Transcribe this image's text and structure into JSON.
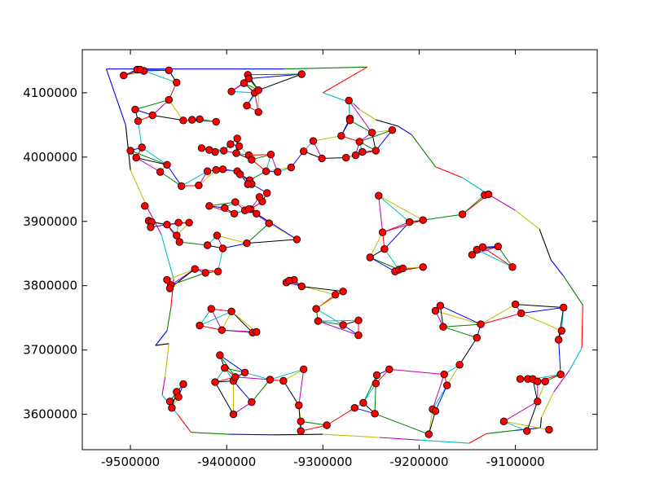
{
  "chart_data": {
    "type": "scatter",
    "title": "",
    "xlabel": "",
    "ylabel": "",
    "xlim": [
      -9550000,
      -9015000
    ],
    "ylim": [
      3545000,
      4167000
    ],
    "grid": false,
    "x_ticks": [
      -9500000,
      -9400000,
      -9300000,
      -9200000,
      -9100000
    ],
    "x_tick_labels": [
      "-9500000",
      "-9400000",
      "-9300000",
      "-9200000",
      "-9100000"
    ],
    "y_ticks": [
      3600000,
      3700000,
      3800000,
      3900000,
      4000000,
      4100000
    ],
    "y_tick_labels": [
      "3600000",
      "3700000",
      "3800000",
      "3900000",
      "4000000",
      "4100000"
    ],
    "point_style": {
      "marker": "circle",
      "fill": "#ff0000",
      "edge": "#000000"
    },
    "edge_palette": [
      "#0000ff",
      "#008000",
      "#ff0000",
      "#00bfbf",
      "#bf00bf",
      "#bfbf00",
      "#000000"
    ],
    "boundary": [
      [
        -9525000,
        4137000
      ],
      [
        -9340000,
        4137000
      ],
      [
        -9254000,
        4140000
      ],
      [
        -9300000,
        4100000
      ],
      [
        -9268000,
        4083000
      ],
      [
        -9262000,
        4074000
      ],
      [
        -9245000,
        4058000
      ],
      [
        -9222000,
        4048000
      ],
      [
        -9208000,
        4035000
      ],
      [
        -9183000,
        3985000
      ],
      [
        -9155000,
        3968000
      ],
      [
        -9128000,
        3942000
      ],
      [
        -9100000,
        3917000
      ],
      [
        -9075000,
        3888000
      ],
      [
        -9063000,
        3840000
      ],
      [
        -9050000,
        3815000
      ],
      [
        -9030000,
        3770000
      ],
      [
        -9031000,
        3703000
      ],
      [
        -9044000,
        3668000
      ],
      [
        -9060000,
        3635000
      ],
      [
        -9073000,
        3595000
      ],
      [
        -9074000,
        3579000
      ],
      [
        -9100000,
        3575000
      ],
      [
        -9130000,
        3570000
      ],
      [
        -9148000,
        3555000
      ],
      [
        -9200000,
        3560000
      ],
      [
        -9241000,
        3564000
      ],
      [
        -9300000,
        3569000
      ],
      [
        -9352000,
        3568000
      ],
      [
        -9398000,
        3569000
      ],
      [
        -9437000,
        3572000
      ],
      [
        -9451000,
        3600000
      ],
      [
        -9467000,
        3630000
      ],
      [
        -9464000,
        3658000
      ],
      [
        -9460000,
        3710000
      ],
      [
        -9474000,
        3707000
      ],
      [
        -9462000,
        3730000
      ],
      [
        -9458000,
        3765000
      ],
      [
        -9455000,
        3810000
      ],
      [
        -9468000,
        3880000
      ],
      [
        -9482000,
        3920000
      ],
      [
        -9500000,
        3980000
      ],
      [
        -9505000,
        4050000
      ],
      [
        -9525000,
        4137000
      ]
    ],
    "points": [
      [
        -9507,
        4127
      ],
      [
        -9493,
        4136
      ],
      [
        -9486,
        4134
      ],
      [
        -9490,
        4136
      ],
      [
        -9460,
        4135
      ],
      [
        -9452,
        4116
      ],
      [
        -9460,
        4089
      ],
      [
        -9495,
        4074
      ],
      [
        -9477,
        4065
      ],
      [
        -9492,
        4056
      ],
      [
        -9445,
        4057
      ],
      [
        -9436,
        4058
      ],
      [
        -9428,
        4059
      ],
      [
        -9411,
        4055
      ],
      [
        -9378,
        4128
      ],
      [
        -9377,
        4122
      ],
      [
        -9382,
        4115
      ],
      [
        -9395,
        4102
      ],
      [
        -9371,
        4100
      ],
      [
        -9367,
        4104
      ],
      [
        -9379,
        4080
      ],
      [
        -9367,
        4070
      ],
      [
        -9322,
        4129
      ],
      [
        -9273,
        4088
      ],
      [
        -9272,
        4060
      ],
      [
        -9272,
        4057
      ],
      [
        -9281,
        4033
      ],
      [
        -9262,
        4024
      ],
      [
        -9249,
        4038
      ],
      [
        -9228,
        4042
      ],
      [
        -9266,
        4003
      ],
      [
        -9276,
        3999
      ],
      [
        -9259,
        4008
      ],
      [
        -9245,
        4010
      ],
      [
        -9310,
        4025
      ],
      [
        -9301,
        3998
      ],
      [
        -9320,
        4009
      ],
      [
        -9354,
        4004
      ],
      [
        -9389,
        4029
      ],
      [
        -9396,
        4020
      ],
      [
        -9387,
        4017
      ],
      [
        -9390,
        4006
      ],
      [
        -9403,
        4010
      ],
      [
        -9412,
        4008
      ],
      [
        -9426,
        4014
      ],
      [
        -9418,
        4011
      ],
      [
        -9377,
        4003
      ],
      [
        -9374,
        3996
      ],
      [
        -9359,
        3978
      ],
      [
        -9347,
        3977
      ],
      [
        -9333,
        3984
      ],
      [
        -9500,
        4010
      ],
      [
        -9488,
        4015
      ],
      [
        -9494,
        3999
      ],
      [
        -9462,
        3988
      ],
      [
        -9469,
        3977
      ],
      [
        -9447,
        3955
      ],
      [
        -9429,
        3956
      ],
      [
        -9404,
        3981
      ],
      [
        -9411,
        3980
      ],
      [
        -9420,
        3978
      ],
      [
        -9389,
        3978
      ],
      [
        -9386,
        3973
      ],
      [
        -9376,
        3964
      ],
      [
        -9374,
        3958
      ],
      [
        -9378,
        3958
      ],
      [
        -9358,
        3944
      ],
      [
        -9363,
        3931
      ],
      [
        -9391,
        3930
      ],
      [
        -9381,
        3917
      ],
      [
        -9375,
        3919
      ],
      [
        -9366,
        3938
      ],
      [
        -9377,
        3919
      ],
      [
        -9402,
        3921
      ],
      [
        -9418,
        3924
      ],
      [
        -9392,
        3912
      ],
      [
        -9369,
        3912
      ],
      [
        -9485,
        3924
      ],
      [
        -9481,
        3901
      ],
      [
        -9478,
        3899
      ],
      [
        -9479,
        3891
      ],
      [
        -9462,
        3895
      ],
      [
        -9450,
        3898
      ],
      [
        -9439,
        3898
      ],
      [
        -9452,
        3878
      ],
      [
        -9449,
        3868
      ],
      [
        -9410,
        3878
      ],
      [
        -9420,
        3863
      ],
      [
        -9404,
        3858
      ],
      [
        -9379,
        3866
      ],
      [
        -9356,
        3897
      ],
      [
        -9327,
        3872
      ],
      [
        -9409,
        3822
      ],
      [
        -9458,
        3801
      ],
      [
        -9462,
        3809
      ],
      [
        -9459,
        3796
      ],
      [
        -9433,
        3826
      ],
      [
        -9422,
        3820
      ],
      [
        -9416,
        3764
      ],
      [
        -9395,
        3760
      ],
      [
        -9373,
        3727
      ],
      [
        -9428,
        3738
      ],
      [
        -9405,
        3731
      ],
      [
        -9369,
        3728
      ],
      [
        -9407,
        3692
      ],
      [
        -9402,
        3672
      ],
      [
        -9393,
        3652
      ],
      [
        -9381,
        3665
      ],
      [
        -9355,
        3654
      ],
      [
        -9341,
        3652
      ],
      [
        -9459,
        3620
      ],
      [
        -9452,
        3635
      ],
      [
        -9450,
        3627
      ],
      [
        -9457,
        3610
      ],
      [
        -9445,
        3647
      ],
      [
        -9412,
        3650
      ],
      [
        -9391,
        3658
      ],
      [
        -9393,
        3600
      ],
      [
        -9374,
        3619
      ],
      [
        -9338,
        3805
      ],
      [
        -9330,
        3809
      ],
      [
        -9335,
        3808
      ],
      [
        -9322,
        3799
      ],
      [
        -9307,
        3764
      ],
      [
        -9287,
        3786
      ],
      [
        -9279,
        3739
      ],
      [
        -9263,
        3746
      ],
      [
        -9263,
        3723
      ],
      [
        -9305,
        3745
      ],
      [
        -9279,
        3791
      ],
      [
        -9225,
        3822
      ],
      [
        -9221,
        3825
      ],
      [
        -9217,
        3827
      ],
      [
        -9251,
        3844
      ],
      [
        -9236,
        3857
      ],
      [
        -9238,
        3883
      ],
      [
        -9210,
        3899
      ],
      [
        -9196,
        3902
      ],
      [
        -9196,
        3829
      ],
      [
        -9183,
        3761
      ],
      [
        -9178,
        3769
      ],
      [
        -9175,
        3736
      ],
      [
        -9174,
        3662
      ],
      [
        -9158,
        3677
      ],
      [
        -9140,
        3719
      ],
      [
        -9136,
        3740
      ],
      [
        -9171,
        3645
      ],
      [
        -9186,
        3608
      ],
      [
        -9183,
        3605
      ],
      [
        -9190,
        3569
      ],
      [
        -9145,
        3848
      ],
      [
        -9140,
        3856
      ],
      [
        -9134,
        3860
      ],
      [
        -9118,
        3861
      ],
      [
        -9103,
        3829
      ],
      [
        -9100,
        3771
      ],
      [
        -9094,
        3757
      ],
      [
        -9095,
        3655
      ],
      [
        -9087,
        3655
      ],
      [
        -9082,
        3655
      ],
      [
        -9077,
        3651
      ],
      [
        -9069,
        3651
      ],
      [
        -9112,
        3589
      ],
      [
        -9088,
        3574
      ],
      [
        -9132,
        3941
      ],
      [
        -9128,
        3942
      ],
      [
        -9155,
        3911
      ],
      [
        -9242,
        3940
      ],
      [
        -9244,
        3661
      ],
      [
        -9245,
        3648
      ],
      [
        -9231,
        3670
      ],
      [
        -9258,
        3618
      ],
      [
        -9246,
        3601
      ],
      [
        -9267,
        3610
      ],
      [
        -9320,
        3670
      ],
      [
        -9325,
        3614
      ],
      [
        -9323,
        3589
      ],
      [
        -9323,
        3574
      ],
      [
        -9296,
        3583
      ],
      [
        -9050,
        3766
      ],
      [
        -9052,
        3730
      ],
      [
        -9055,
        3716
      ],
      [
        -9053,
        3662
      ],
      [
        -9077,
        3620
      ],
      [
        -9065,
        3576
      ]
    ],
    "point_scale": 1000
  }
}
